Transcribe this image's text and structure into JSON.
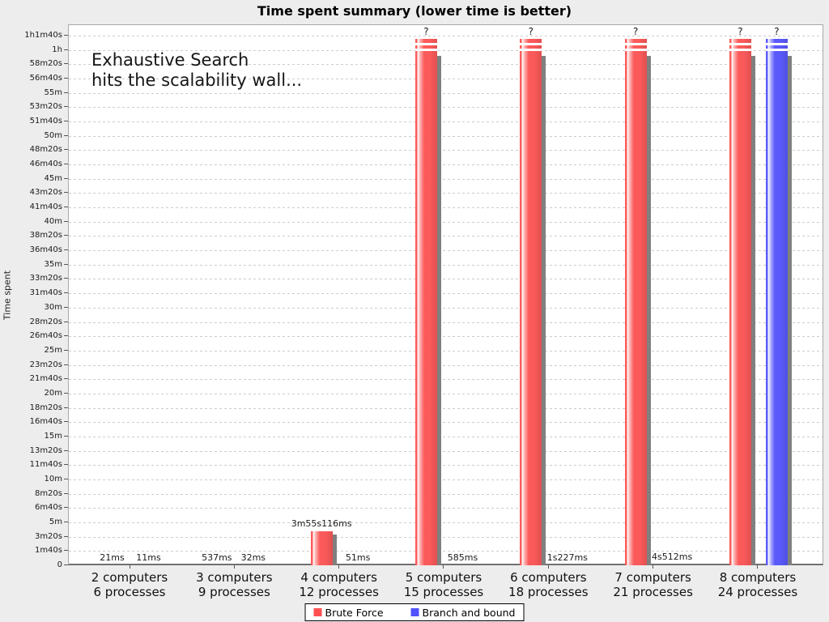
{
  "title": "Time spent summary (lower time is better)",
  "annotation": {
    "line1": "Exhaustive Search",
    "line2": "hits the scalability wall..."
  },
  "y_axis": {
    "label": "Time spent",
    "max_seconds": 3700,
    "tick_interval_seconds": 100,
    "tick_labels_top_to_bottom": [
      "1h1m40s",
      "1h",
      "58m20s",
      "56m40s",
      "55m",
      "53m20s",
      "51m40s",
      "50m",
      "48m20s",
      "46m40s",
      "45m",
      "43m20s",
      "41m40s",
      "40m",
      "38m20s",
      "36m40s",
      "35m",
      "33m20s",
      "31m40s",
      "30m",
      "28m20s",
      "26m40s",
      "25m",
      "23m20s",
      "21m40s",
      "20m",
      "18m20s",
      "16m40s",
      "15m",
      "13m20s",
      "11m40s",
      "10m",
      "8m20s",
      "6m40s",
      "5m",
      "3m20s",
      "1m40s",
      "0"
    ]
  },
  "x_axis": {
    "categories": [
      {
        "line1": "2 computers",
        "line2": "6 processes"
      },
      {
        "line1": "3 computers",
        "line2": "9 processes"
      },
      {
        "line1": "4 computers",
        "line2": "12 processes"
      },
      {
        "line1": "5 computers",
        "line2": "15 processes"
      },
      {
        "line1": "6 computers",
        "line2": "18 processes"
      },
      {
        "line1": "7 computers",
        "line2": "21 processes"
      },
      {
        "line1": "8 computers",
        "line2": "24 processes"
      }
    ]
  },
  "legend": [
    {
      "name": "Brute Force",
      "color": "#ff5050"
    },
    {
      "name": "Branch and bound",
      "color": "#5050ff"
    }
  ],
  "colors": {
    "background": "#ededed",
    "plot_background": "#ffffff",
    "gridline": "#cccccc",
    "bar_shadow": "#808080",
    "brute_force_main": "#fb5a5a",
    "brute_force_light": "#ffb0b0",
    "brute_force_dark": "#e05050",
    "branch_bound_main": "#5a5afb",
    "branch_bound_light": "#b0b0ff",
    "branch_bound_dark": "#5050e0"
  },
  "chart_data": {
    "type": "bar",
    "title": "Time spent summary (lower time is better)",
    "xlabel": "",
    "ylabel": "Time spent",
    "ylim_seconds": [
      0,
      3700
    ],
    "grid": "dashed horizontal every 100s",
    "legend_position": "bottom",
    "unknown_marker": "?",
    "categories": [
      "2 computers 6 processes",
      "3 computers 9 processes",
      "4 computers 12 processes",
      "5 computers 15 processes",
      "6 computers 18 processes",
      "7 computers 21 processes",
      "8 computers 24 processes"
    ],
    "series": [
      {
        "name": "Brute Force",
        "color": "#fb5a5a",
        "values_seconds": [
          0.021,
          0.537,
          235.116,
          null,
          null,
          null,
          null
        ],
        "labels": [
          "21ms",
          "537ms",
          "3m55s116ms",
          "?",
          "?",
          "?",
          "?"
        ],
        "note": "null = exceeded time limit, drawn as capped bar at ~1h with break stripes and ? label"
      },
      {
        "name": "Branch and bound",
        "color": "#5a5afb",
        "values_seconds": [
          0.011,
          0.032,
          0.051,
          0.585,
          1.227,
          4.512,
          null
        ],
        "labels": [
          "11ms",
          "32ms",
          "51ms",
          "585ms",
          "1s227ms",
          "4s512ms",
          "?"
        ]
      }
    ]
  }
}
